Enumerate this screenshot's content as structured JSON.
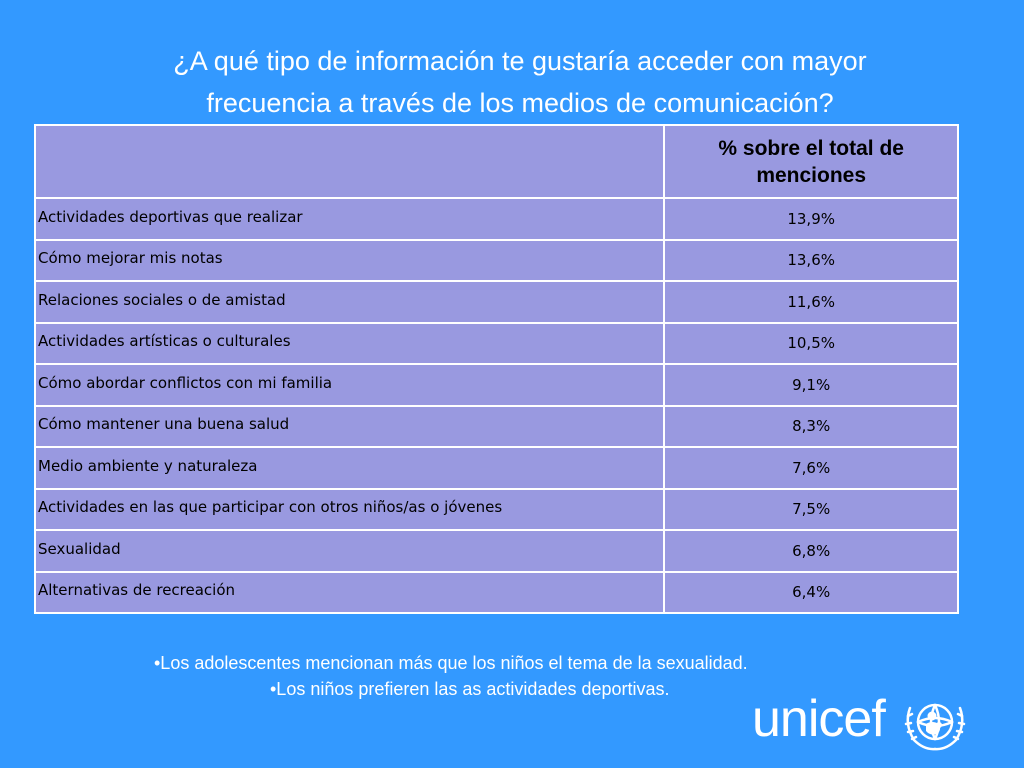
{
  "title": {
    "line1": "¿A qué tipo de información te gustaría acceder con mayor",
    "line2": "frecuencia a través de los medios de comunicación?"
  },
  "table": {
    "column_header": "% sobre el total de menciones",
    "rows": [
      {
        "label": "Actividades deportivas que realizar",
        "value": "13,9%"
      },
      {
        "label": "Cómo mejorar mis notas",
        "value": "13,6%"
      },
      {
        "label": "Relaciones sociales o de amistad",
        "value": "11,6%"
      },
      {
        "label": "Actividades artísticas o culturales",
        "value": "10,5%"
      },
      {
        "label": "Cómo abordar conflictos con mi familia",
        "value": "9,1%"
      },
      {
        "label": "Cómo mantener una buena salud",
        "value": "8,3%"
      },
      {
        "label": "Medio ambiente y naturaleza",
        "value": "7,6%"
      },
      {
        "label": "Actividades en las que participar con otros niños/as o jóvenes",
        "value": "7,5%"
      },
      {
        "label": "Sexualidad",
        "value": "6,8%"
      },
      {
        "label": "Alternativas de recreación",
        "value": "6,4%"
      }
    ]
  },
  "notes": {
    "note1": "•Los adolescentes  mencionan más que los niños el tema de la sexualidad.",
    "note2": "•Los  niños  prefieren las as actividades deportivas."
  },
  "logo": {
    "text": "unicef",
    "emblem_icon": "unicef-emblem-icon"
  },
  "colors": {
    "background": "#3399ff",
    "table_fill": "#9999e0",
    "text_light": "#ffffff"
  }
}
